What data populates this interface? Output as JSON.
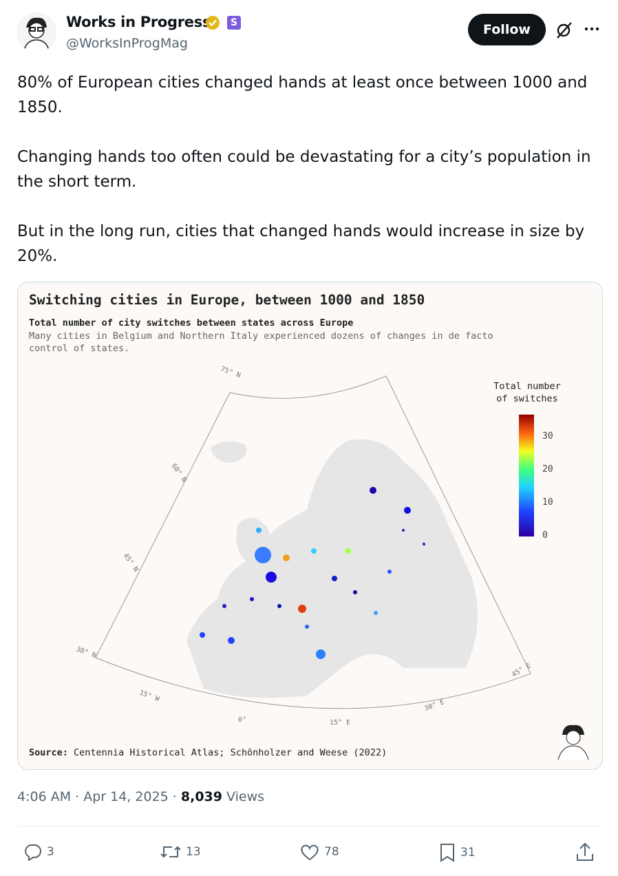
{
  "author": {
    "name": "Works in Progress",
    "badge": "S",
    "handle": "@WorksInProgMag"
  },
  "actions": {
    "follow": "Follow"
  },
  "post": {
    "paragraphs": [
      "80% of European cities changed hands at least once between 1000 and 1850.",
      "Changing hands too often could be devastating for a city’s population in the short term.",
      "But in the long run, cities that changed hands would increase in size by 20%."
    ]
  },
  "figure": {
    "title": "Switching cities in Europe, between 1000 and 1850",
    "subtitle": "Total number of city switches between states across Europe",
    "description": "Many cities in Belgium and Northern Italy experienced dozens of changes in de facto control of states.",
    "legend_title": "Total number of switches",
    "legend_ticks": [
      "30",
      "20",
      "10",
      "0"
    ],
    "graticule_labels": [
      "75° N",
      "60° N",
      "45° N",
      "30° N",
      "15° W",
      "0°",
      "15° E",
      "30° E",
      "45° E"
    ],
    "source_label": "Source:",
    "source": "Centennia Historical Atlas; Schönholzer and Weese (2022)"
  },
  "meta": {
    "time": "4:06 AM",
    "date": "Apr 14, 2025",
    "views_count": "8,039",
    "views_label": "Views"
  },
  "stats": {
    "replies": "3",
    "reposts": "13",
    "likes": "78",
    "bookmarks": "31"
  }
}
